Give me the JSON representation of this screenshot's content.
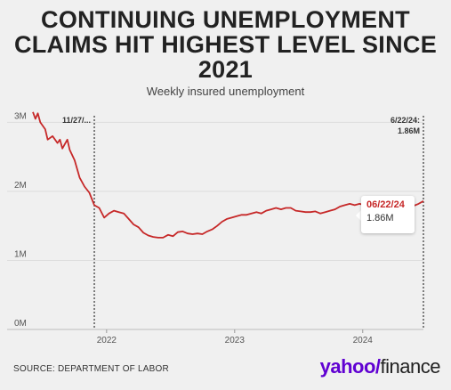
{
  "title": "CONTINUING UNEMPLOYMENT CLAIMS HIT HIGHEST LEVEL SINCE 2021",
  "subtitle": "Weekly insured unemployment",
  "source": "SOURCE: DEPARTMENT OF LABOR",
  "logo": {
    "brand": "yahoo/",
    "product": "finance"
  },
  "annotations": {
    "left_marker": "11/27/...",
    "right_marker_date": "6/22/24:",
    "right_marker_value": "1.86M"
  },
  "tooltip": {
    "date": "06/22/24",
    "value": "1.86M"
  },
  "colors": {
    "line": "#c62828",
    "background": "#f0f0f0"
  },
  "chart_data": {
    "type": "line",
    "title": "CONTINUING UNEMPLOYMENT CLAIMS HIT HIGHEST LEVEL SINCE 2021",
    "subtitle": "Weekly insured unemployment",
    "xlabel": "",
    "ylabel": "",
    "y_ticks": [
      "0M",
      "1M",
      "2M",
      "3M"
    ],
    "x_ticks": [
      "2022",
      "2023",
      "2024"
    ],
    "ylim": [
      0,
      3.25
    ],
    "xlim": [
      "2021-06-05",
      "2024-06-22"
    ],
    "grid": true,
    "series": [
      {
        "values": [
          [
            "2021-06-05",
            3.15
          ],
          [
            "2021-06-12",
            3.05
          ],
          [
            "2021-06-19",
            3.13
          ],
          [
            "2021-06-26",
            3.0
          ],
          [
            "2021-07-10",
            2.9
          ],
          [
            "2021-07-17",
            2.75
          ],
          [
            "2021-07-31",
            2.8
          ],
          [
            "2021-08-14",
            2.7
          ],
          [
            "2021-08-21",
            2.75
          ],
          [
            "2021-08-28",
            2.62
          ],
          [
            "2021-09-11",
            2.75
          ],
          [
            "2021-09-18",
            2.6
          ],
          [
            "2021-10-02",
            2.45
          ],
          [
            "2021-10-16",
            2.2
          ],
          [
            "2021-10-30",
            2.07
          ],
          [
            "2021-11-13",
            1.98
          ],
          [
            "2021-11-27",
            1.8
          ],
          [
            "2021-12-11",
            1.76
          ],
          [
            "2021-12-25",
            1.62
          ],
          [
            "2022-01-08",
            1.68
          ],
          [
            "2022-01-22",
            1.72
          ],
          [
            "2022-02-05",
            1.7
          ],
          [
            "2022-02-19",
            1.68
          ],
          [
            "2022-03-05",
            1.6
          ],
          [
            "2022-03-19",
            1.52
          ],
          [
            "2022-04-02",
            1.48
          ],
          [
            "2022-04-16",
            1.4
          ],
          [
            "2022-04-30",
            1.36
          ],
          [
            "2022-05-14",
            1.34
          ],
          [
            "2022-05-28",
            1.33
          ],
          [
            "2022-06-11",
            1.33
          ],
          [
            "2022-06-25",
            1.37
          ],
          [
            "2022-07-09",
            1.35
          ],
          [
            "2022-07-23",
            1.41
          ],
          [
            "2022-08-06",
            1.42
          ],
          [
            "2022-08-20",
            1.39
          ],
          [
            "2022-09-03",
            1.38
          ],
          [
            "2022-09-17",
            1.39
          ],
          [
            "2022-10-01",
            1.38
          ],
          [
            "2022-10-15",
            1.42
          ],
          [
            "2022-10-29",
            1.45
          ],
          [
            "2022-11-12",
            1.5
          ],
          [
            "2022-11-26",
            1.56
          ],
          [
            "2022-12-10",
            1.6
          ],
          [
            "2022-12-24",
            1.62
          ],
          [
            "2023-01-07",
            1.64
          ],
          [
            "2023-01-21",
            1.66
          ],
          [
            "2023-02-04",
            1.66
          ],
          [
            "2023-02-18",
            1.68
          ],
          [
            "2023-03-04",
            1.7
          ],
          [
            "2023-03-18",
            1.68
          ],
          [
            "2023-04-01",
            1.72
          ],
          [
            "2023-04-15",
            1.74
          ],
          [
            "2023-04-29",
            1.76
          ],
          [
            "2023-05-13",
            1.74
          ],
          [
            "2023-05-27",
            1.76
          ],
          [
            "2023-06-10",
            1.76
          ],
          [
            "2023-06-24",
            1.72
          ],
          [
            "2023-07-08",
            1.71
          ],
          [
            "2023-07-22",
            1.7
          ],
          [
            "2023-08-05",
            1.7
          ],
          [
            "2023-08-19",
            1.71
          ],
          [
            "2023-09-02",
            1.68
          ],
          [
            "2023-09-16",
            1.7
          ],
          [
            "2023-09-30",
            1.72
          ],
          [
            "2023-10-14",
            1.74
          ],
          [
            "2023-10-28",
            1.78
          ],
          [
            "2023-11-11",
            1.8
          ],
          [
            "2023-11-25",
            1.82
          ],
          [
            "2023-12-09",
            1.8
          ],
          [
            "2023-12-23",
            1.82
          ],
          [
            "2024-01-06",
            1.8
          ],
          [
            "2024-01-20",
            1.82
          ],
          [
            "2024-02-03",
            1.82
          ],
          [
            "2024-02-17",
            1.84
          ],
          [
            "2024-03-02",
            1.8
          ],
          [
            "2024-03-16",
            1.8
          ],
          [
            "2024-03-30",
            1.82
          ],
          [
            "2024-04-13",
            1.82
          ],
          [
            "2024-04-27",
            1.8
          ],
          [
            "2024-05-11",
            1.78
          ],
          [
            "2024-05-25",
            1.79
          ],
          [
            "2024-06-08",
            1.82
          ],
          [
            "2024-06-22",
            1.86
          ]
        ]
      }
    ]
  }
}
